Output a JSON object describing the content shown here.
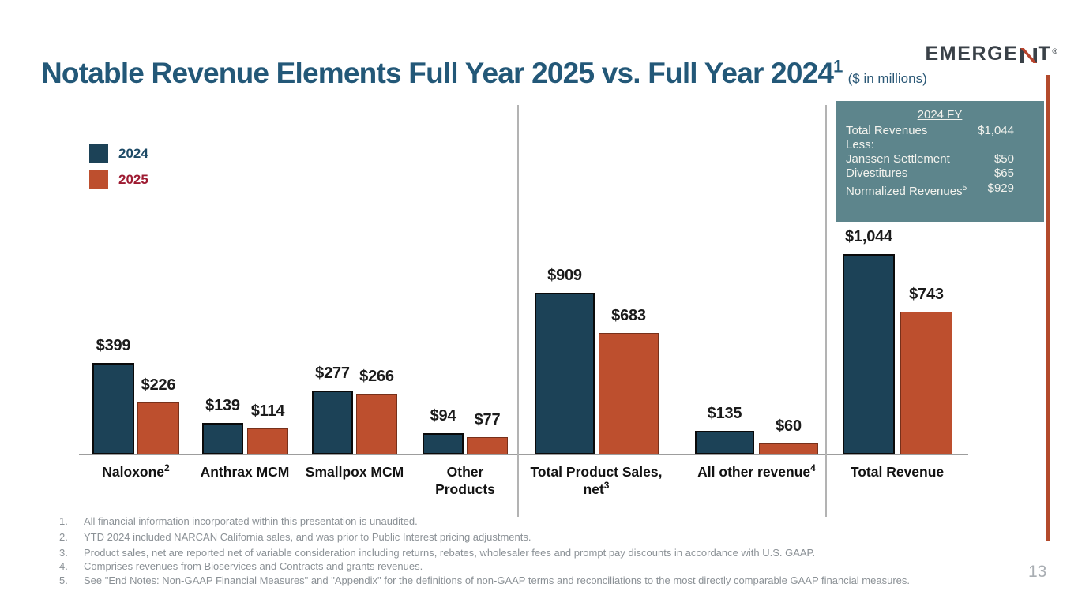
{
  "slide": {
    "title": {
      "main": "Notable Revenue Elements Full Year 2025 vs. Full Year 2024",
      "footnote_sup": "1",
      "subtitle": "($ in millions)"
    },
    "logo": {
      "prefix": "EMERGE",
      "suffix": "T",
      "reg": "®",
      "name": "EMERGENT"
    },
    "page_number": "13"
  },
  "colors": {
    "title_navy": "#235878",
    "bar_2024": "#1c4257",
    "bar_2025": "#bd4f2e",
    "legend_2024_text": "#1d4a66",
    "legend_2025_text": "#9e1b32",
    "summary_box_teal": "#5d858c",
    "accent_rust_line": "#b34a2c"
  },
  "legend": {
    "items": [
      {
        "label": "2024",
        "swatch": "#1c4257",
        "text_color": "#1d4a66"
      },
      {
        "label": "2025",
        "swatch": "#bd4f2e",
        "text_color": "#9e1b32"
      }
    ]
  },
  "summary_box": {
    "header": "2024 FY",
    "rows": [
      {
        "label": "Total Revenues",
        "value": "$1,044"
      },
      {
        "label": "Less:",
        "value": ""
      },
      {
        "label": "Janssen Settlement",
        "value": "$50"
      },
      {
        "label": "Divestitures",
        "value": "$65",
        "underline_value": true
      },
      {
        "label": "Normalized Revenues",
        "label_sup": "5",
        "value": "$929"
      }
    ]
  },
  "chart_data": {
    "type": "bar",
    "title": "Notable Revenue Elements Full Year 2025 vs. Full Year 2024 ($ in millions)",
    "unit": "USD millions",
    "value_prefix": "$",
    "grid": false,
    "legend_position": "top-left",
    "ylim": [
      0,
      1100
    ],
    "categories": [
      "Naloxone",
      "Anthrax MCM",
      "Smallpox MCM",
      "Other Products",
      "Total Product Sales, net",
      "All other revenue",
      "Total Revenue"
    ],
    "category_lines": [
      [
        {
          "t": "Naloxone",
          "sup": "2"
        }
      ],
      [
        {
          "t": "Anthrax MCM"
        }
      ],
      [
        {
          "t": "Smallpox MCM"
        }
      ],
      [
        {
          "t": "Other"
        },
        {
          "t": "Products"
        }
      ],
      [
        {
          "t": "Total Product Sales,"
        },
        {
          "t": "net",
          "sup": "3"
        }
      ],
      [
        {
          "t": "All other revenue",
          "sup": "4"
        }
      ],
      [
        {
          "t": "Total Revenue"
        }
      ]
    ],
    "series": [
      {
        "name": "2024",
        "color": "#1c4257",
        "values": [
          399,
          139,
          277,
          94,
          909,
          135,
          1044
        ]
      },
      {
        "name": "2025",
        "color": "#bd4f2e",
        "values": [
          226,
          114,
          266,
          77,
          683,
          60,
          743
        ]
      }
    ]
  },
  "footnotes": [
    {
      "num": "1.",
      "text": "All financial information incorporated within this presentation is unaudited."
    },
    {
      "num": "2.",
      "text": "YTD 2024 included NARCAN California sales, and was prior to Public Interest pricing adjustments."
    },
    {
      "num": "3.",
      "text": "Product sales, net are reported net of variable consideration including returns, rebates, wholesaler fees and prompt pay discounts in accordance with U.S. GAAP."
    },
    {
      "num": "4.",
      "text": "Comprises revenues from Bioservices  and Contracts and grants revenues."
    },
    {
      "num": "5.",
      "text": "See \"End Notes: Non-GAAP Financial Measures\" and \"Appendix\" for the definitions of non-GAAP terms and reconciliations to the most directly comparable GAAP financial measures."
    }
  ]
}
